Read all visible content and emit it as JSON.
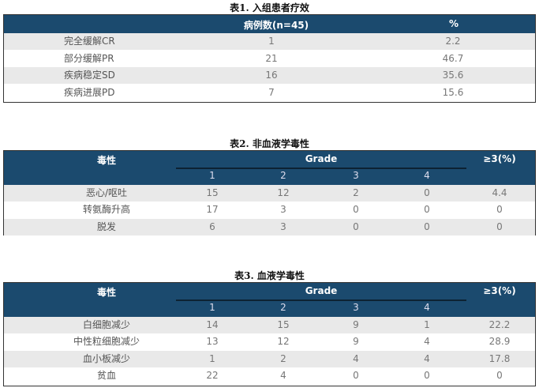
{
  "table1": {
    "title": "表1. 入组患者疗效",
    "headers": [
      "",
      "病例数(n=45)",
      "%"
    ],
    "rows": [
      [
        "完全缓解CR",
        "1",
        "2.2"
      ],
      [
        "部分缓解PR",
        "21",
        "46.7"
      ],
      [
        "疾病稳定SD",
        "16",
        "35.6"
      ],
      [
        "疾病进展PD",
        "7",
        "15.6"
      ]
    ]
  },
  "table2": {
    "title": "表2. 非血液学毒性",
    "header_name": "毒性",
    "header_grade": "Grade",
    "header_pct": "≥3(%)",
    "grades": [
      "1",
      "2",
      "3",
      "4"
    ],
    "rows": [
      [
        "恶心/呕吐",
        "15",
        "12",
        "2",
        "0",
        "4.4"
      ],
      [
        "转氨酶升高",
        "17",
        "3",
        "0",
        "0",
        "0"
      ],
      [
        "脱发",
        "6",
        "3",
        "0",
        "0",
        "0"
      ]
    ]
  },
  "table3": {
    "title": "表3. 血液学毒性",
    "header_name": "毒性",
    "header_grade": "Grade",
    "header_pct": "≥3(%)",
    "grades": [
      "1",
      "2",
      "3",
      "4"
    ],
    "rows": [
      [
        "白细胞减少",
        "14",
        "15",
        "9",
        "1",
        "22.2"
      ],
      [
        "中性粒细胞减少",
        "13",
        "12",
        "9",
        "4",
        "28.9"
      ],
      [
        "血小板减少",
        "1",
        "2",
        "4",
        "4",
        "17.8"
      ],
      [
        "贫血",
        "22",
        "4",
        "0",
        "0",
        "0"
      ]
    ]
  },
  "colors": {
    "header": "#1b4a6e",
    "stripe": "#e9e9e9"
  }
}
